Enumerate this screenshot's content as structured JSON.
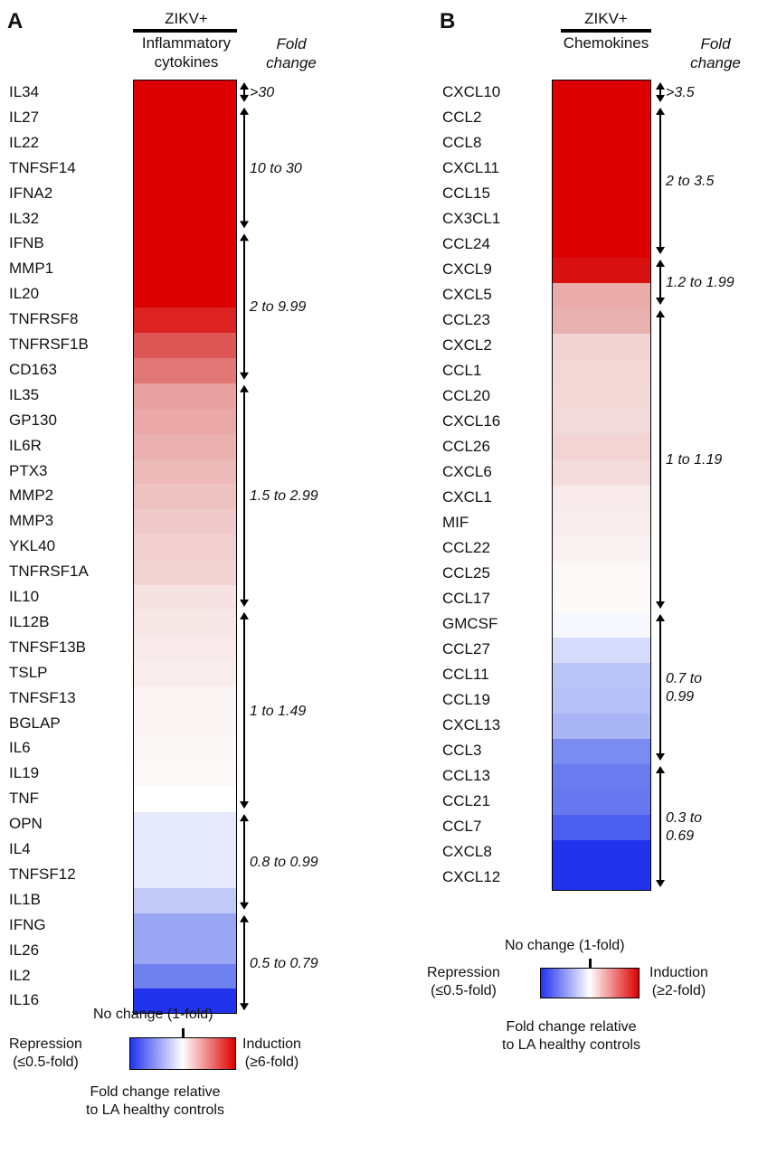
{
  "panels": [
    {
      "letter": "A",
      "header_top": "ZIKV+",
      "header_sub": "Inflammatory\ncytokines",
      "fold_title": "Fold\nchange",
      "genes": [
        "IL34",
        "IL27",
        "IL22",
        "TNFSF14",
        "IFNA2",
        "IL32",
        "IFNB",
        "MMP1",
        "IL20",
        "TNFRSF8",
        "TNFRSF1B",
        "CD163",
        "IL35",
        "GP130",
        "IL6R",
        "PTX3",
        "MMP2",
        "MMP3",
        "YKL40",
        "TNFRSF1A",
        "IL10",
        "IL12B",
        "TNFSF13B",
        "TSLP",
        "TNFSF13",
        "BGLAP",
        "IL6",
        "IL19",
        "TNF",
        "OPN",
        "IL4",
        "TNFSF12",
        "IL1B",
        "IFNG",
        "IL26",
        "IL2",
        "IL16"
      ],
      "colors": [
        "#dd0000",
        "#dd0000",
        "#dd0000",
        "#dd0000",
        "#dd0000",
        "#dd0000",
        "#dd0000",
        "#dd0000",
        "#dd0000",
        "#dc2222",
        "#de5555",
        "#e17777",
        "#e9a0a0",
        "#eaa8a8",
        "#ebb0b0",
        "#edbaba",
        "#efc2c2",
        "#f0caca",
        "#f2d0d0",
        "#f2d2d2",
        "#f6e2e2",
        "#f7e6e6",
        "#f8eaea",
        "#f8ecec",
        "#fbf4f4",
        "#fbf5f5",
        "#fcf7f7",
        "#fdf9f9",
        "#ffffff",
        "#e6e9fb",
        "#e6e9fb",
        "#e6e9fb",
        "#c2c9f7",
        "#9aa6f4",
        "#9aa6f4",
        "#6f80ef",
        "#2233ee"
      ],
      "ranges": [
        {
          "label": ">30",
          "start": 0,
          "end": 1
        },
        {
          "label": "10 to 30",
          "start": 1,
          "end": 6
        },
        {
          "label": "2 to 9.99",
          "start": 6,
          "end": 12
        },
        {
          "label": "1.5  to 2.99",
          "start": 12,
          "end": 21
        },
        {
          "label": "1 to 1.49",
          "start": 21,
          "end": 29
        },
        {
          "label": "0.8  to 0.99",
          "start": 29,
          "end": 33
        },
        {
          "label": "0.5  to 0.79",
          "start": 33,
          "end": 37
        }
      ],
      "legend": {
        "no_change": "No change  (1-fold)",
        "left": "Repression\n(≤0.5-fold)",
        "right": "Induction\n(≥6-fold)",
        "caption": "Fold change   relative\nto LA healthy  controls"
      }
    },
    {
      "letter": "B",
      "header_top": "ZIKV+",
      "header_sub": "Chemokines",
      "fold_title": "Fold\nchange",
      "genes": [
        "CXCL10",
        "CCL2",
        "CCL8",
        "CXCL11",
        "CCL15",
        "CX3CL1",
        "CCL24",
        "CXCL9",
        "CXCL5",
        "CCL23",
        "CXCL2",
        "CCL1",
        "CCL20",
        "CXCL16",
        "CCL26",
        "CXCL6",
        "CXCL1",
        "MIF",
        "CCL22",
        "CCL25",
        "CCL17",
        "GMCSF",
        "CCL27",
        "CCL11",
        "CCL19",
        "CXCL13",
        "CCL3",
        "CCL13",
        "CCL21",
        "CCL7",
        "CXCL8",
        "CXCL12"
      ],
      "colors": [
        "#dd0000",
        "#dd0000",
        "#dd0000",
        "#dd0000",
        "#dd0000",
        "#dd0000",
        "#dd0000",
        "#d91010",
        "#e9aaaa",
        "#e9b0b0",
        "#f2d2d2",
        "#f3d6d6",
        "#f3d8d8",
        "#f3dada",
        "#f2d4d4",
        "#f4dcdc",
        "#f8eaea",
        "#f8ecec",
        "#fbf3f3",
        "#fdf8f8",
        "#fdf9f9",
        "#f6f8fd",
        "#d5dbfa",
        "#bcc5f8",
        "#b6c0f7",
        "#aab5f6",
        "#7a8bf1",
        "#6a7bf0",
        "#6677f0",
        "#4c5ff0",
        "#2233ee",
        "#2233ee"
      ],
      "ranges": [
        {
          "label": ">3.5",
          "start": 0,
          "end": 1
        },
        {
          "label": "2  to 3.5",
          "start": 1,
          "end": 7
        },
        {
          "label": "1.2  to 1.99",
          "start": 7,
          "end": 9
        },
        {
          "label": "1 to 1.19",
          "start": 9,
          "end": 21
        },
        {
          "label": "0.7  to\n0.99",
          "start": 21,
          "end": 27
        },
        {
          "label": "0.3  to\n0.69",
          "start": 27,
          "end": 32
        }
      ],
      "legend": {
        "no_change": "No change  (1-fold)",
        "left": "Repression\n(≤0.5-fold)",
        "right": "Induction\n(≥2-fold)",
        "caption": "Fold change   relative\nto LA healthy  controls"
      }
    }
  ],
  "colors": {
    "high": "#dd0000",
    "mid": "#ffffff",
    "low": "#2233ee"
  },
  "chart_data": [
    {
      "type": "heatmap",
      "title": "ZIKV+ Inflammatory cytokines",
      "value_label": "Fold change relative to LA healthy controls",
      "rows": [
        "IL34",
        "IL27",
        "IL22",
        "TNFSF14",
        "IFNA2",
        "IL32",
        "IFNB",
        "MMP1",
        "IL20",
        "TNFRSF8",
        "TNFRSF1B",
        "CD163",
        "IL35",
        "GP130",
        "IL6R",
        "PTX3",
        "MMP2",
        "MMP3",
        "YKL40",
        "TNFRSF1A",
        "IL10",
        "IL12B",
        "TNFSF13B",
        "TSLP",
        "TNFSF13",
        "BGLAP",
        "IL6",
        "IL19",
        "TNF",
        "OPN",
        "IL4",
        "TNFSF12",
        "IL1B",
        "IFNG",
        "IL26",
        "IL2",
        "IL16"
      ],
      "range_groups": [
        ">30",
        "10 to 30",
        "2 to 9.99",
        "1.5 to 2.99",
        "1 to 1.49",
        "0.8 to 0.99",
        "0.5 to 0.79"
      ],
      "scale": {
        "min_label": "Repression (≤0.5-fold)",
        "mid_label": "No change (1-fold)",
        "max_label": "Induction (≥6-fold)"
      }
    },
    {
      "type": "heatmap",
      "title": "ZIKV+ Chemokines",
      "value_label": "Fold change relative to LA healthy controls",
      "rows": [
        "CXCL10",
        "CCL2",
        "CCL8",
        "CXCL11",
        "CCL15",
        "CX3CL1",
        "CCL24",
        "CXCL9",
        "CXCL5",
        "CCL23",
        "CXCL2",
        "CCL1",
        "CCL20",
        "CXCL16",
        "CCL26",
        "CXCL6",
        "CXCL1",
        "MIF",
        "CCL22",
        "CCL25",
        "CCL17",
        "GMCSF",
        "CCL27",
        "CCL11",
        "CCL19",
        "CXCL13",
        "CCL3",
        "CCL13",
        "CCL21",
        "CCL7",
        "CXCL8",
        "CXCL12"
      ],
      "range_groups": [
        ">3.5",
        "2 to 3.5",
        "1.2 to 1.99",
        "1 to 1.19",
        "0.7 to 0.99",
        "0.3 to 0.69"
      ],
      "scale": {
        "min_label": "Repression (≤0.5-fold)",
        "mid_label": "No change (1-fold)",
        "max_label": "Induction (≥2-fold)"
      }
    }
  ]
}
